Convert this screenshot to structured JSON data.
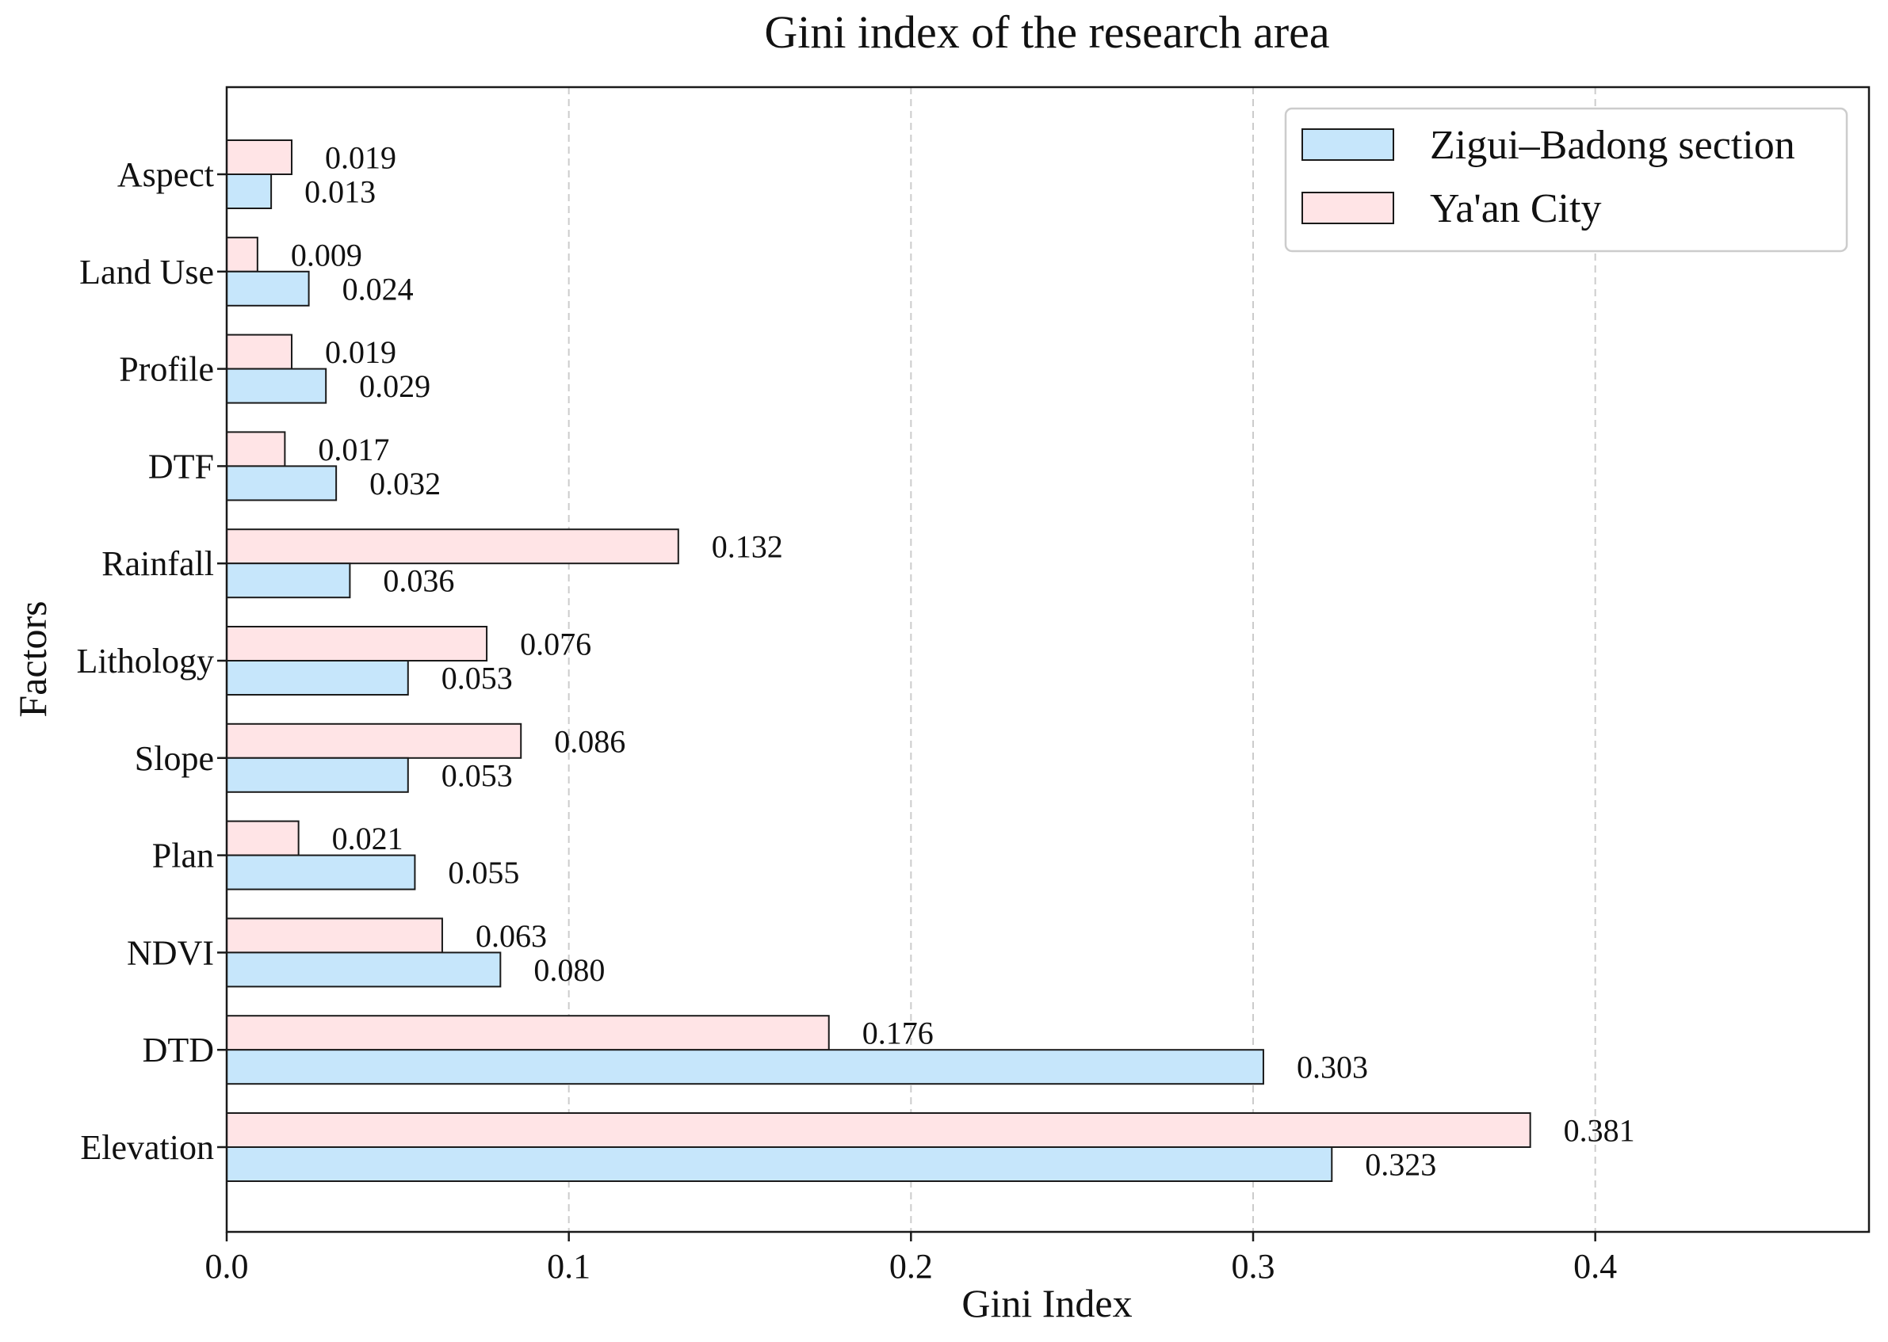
{
  "chart_data": {
    "type": "bar",
    "orientation": "horizontal",
    "title": "Gini index of the research area",
    "xlabel": "Gini Index",
    "ylabel": "Factors",
    "xlim": [
      0,
      0.48
    ],
    "xticks": [
      0.0,
      0.1,
      0.2,
      0.3,
      0.4
    ],
    "xtick_labels": [
      "0.0",
      "0.1",
      "0.2",
      "0.3",
      "0.4"
    ],
    "grid": "vertical dashed",
    "legend_position": "top-right",
    "categories": [
      "Aspect",
      "Land Use",
      "Profile",
      "DTF",
      "Rainfall",
      "Lithology",
      "Slope",
      "Plan",
      "NDVI",
      "DTD",
      "Elevation"
    ],
    "series": [
      {
        "name": "Ya'an City",
        "color": "#ffe4e6",
        "values": [
          0.019,
          0.009,
          0.019,
          0.017,
          0.132,
          0.076,
          0.086,
          0.021,
          0.063,
          0.176,
          0.381
        ],
        "labels": [
          "0.019",
          "0.009",
          "0.019",
          "0.017",
          "0.132",
          "0.076",
          "0.086",
          "0.021",
          "0.063",
          "0.176",
          "0.381"
        ]
      },
      {
        "name": "Zigui–Badong section",
        "color": "#c6e6fb",
        "values": [
          0.013,
          0.024,
          0.029,
          0.032,
          0.036,
          0.053,
          0.053,
          0.055,
          0.08,
          0.303,
          0.323
        ],
        "labels": [
          "0.013",
          "0.024",
          "0.029",
          "0.032",
          "0.036",
          "0.053",
          "0.053",
          "0.055",
          "0.080",
          "0.303",
          "0.323"
        ]
      }
    ],
    "legend": [
      "Zigui–Badong section",
      "Ya'an City"
    ],
    "edge_color": "#1a1a1a",
    "grid_color": "#cccccc"
  }
}
